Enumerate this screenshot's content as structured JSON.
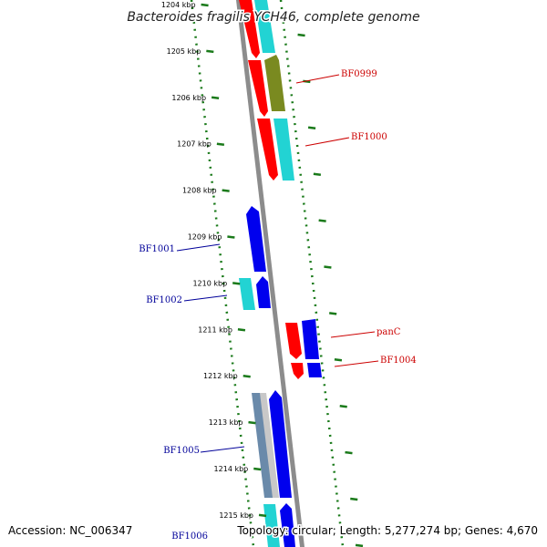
{
  "title": "Bacteroides fragilis YCH46, complete genome",
  "footer": {
    "accession": "Accession: NC_006347",
    "topology": "Topology: circular; Length: 5,277,274 bp; Genes: 4,670"
  },
  "colors": {
    "backbone": "#8c8c8c",
    "tick": "#1a7a1a",
    "red": "#ff0000",
    "cyan": "#22d3d3",
    "blue": "#0000ee",
    "olive": "#7a8a20",
    "steel": "#6a8aaa",
    "grey": "#c8c8c8",
    "label_red": "#cc0000",
    "label_blue": "#000099"
  },
  "tick_labels": [
    "1204 kbp",
    "1205 kbp",
    "1206 kbp",
    "1207 kbp",
    "1208 kbp",
    "1209 kbp",
    "1210 kbp",
    "1211 kbp",
    "1212 kbp",
    "1213 kbp",
    "1214 kbp",
    "1215 kbp"
  ],
  "gene_labels": [
    {
      "text": "BF0999",
      "side": "right",
      "color": "red"
    },
    {
      "text": "BF1000",
      "side": "right",
      "color": "red"
    },
    {
      "text": "BF1001",
      "side": "left",
      "color": "blue"
    },
    {
      "text": "BF1002",
      "side": "left",
      "color": "blue"
    },
    {
      "text": "panC",
      "side": "right",
      "color": "red"
    },
    {
      "text": "BF1004",
      "side": "right",
      "color": "red"
    },
    {
      "text": "BF1005",
      "side": "left",
      "color": "blue"
    },
    {
      "text": "BF1006",
      "side": "left",
      "color": "blue"
    }
  ]
}
